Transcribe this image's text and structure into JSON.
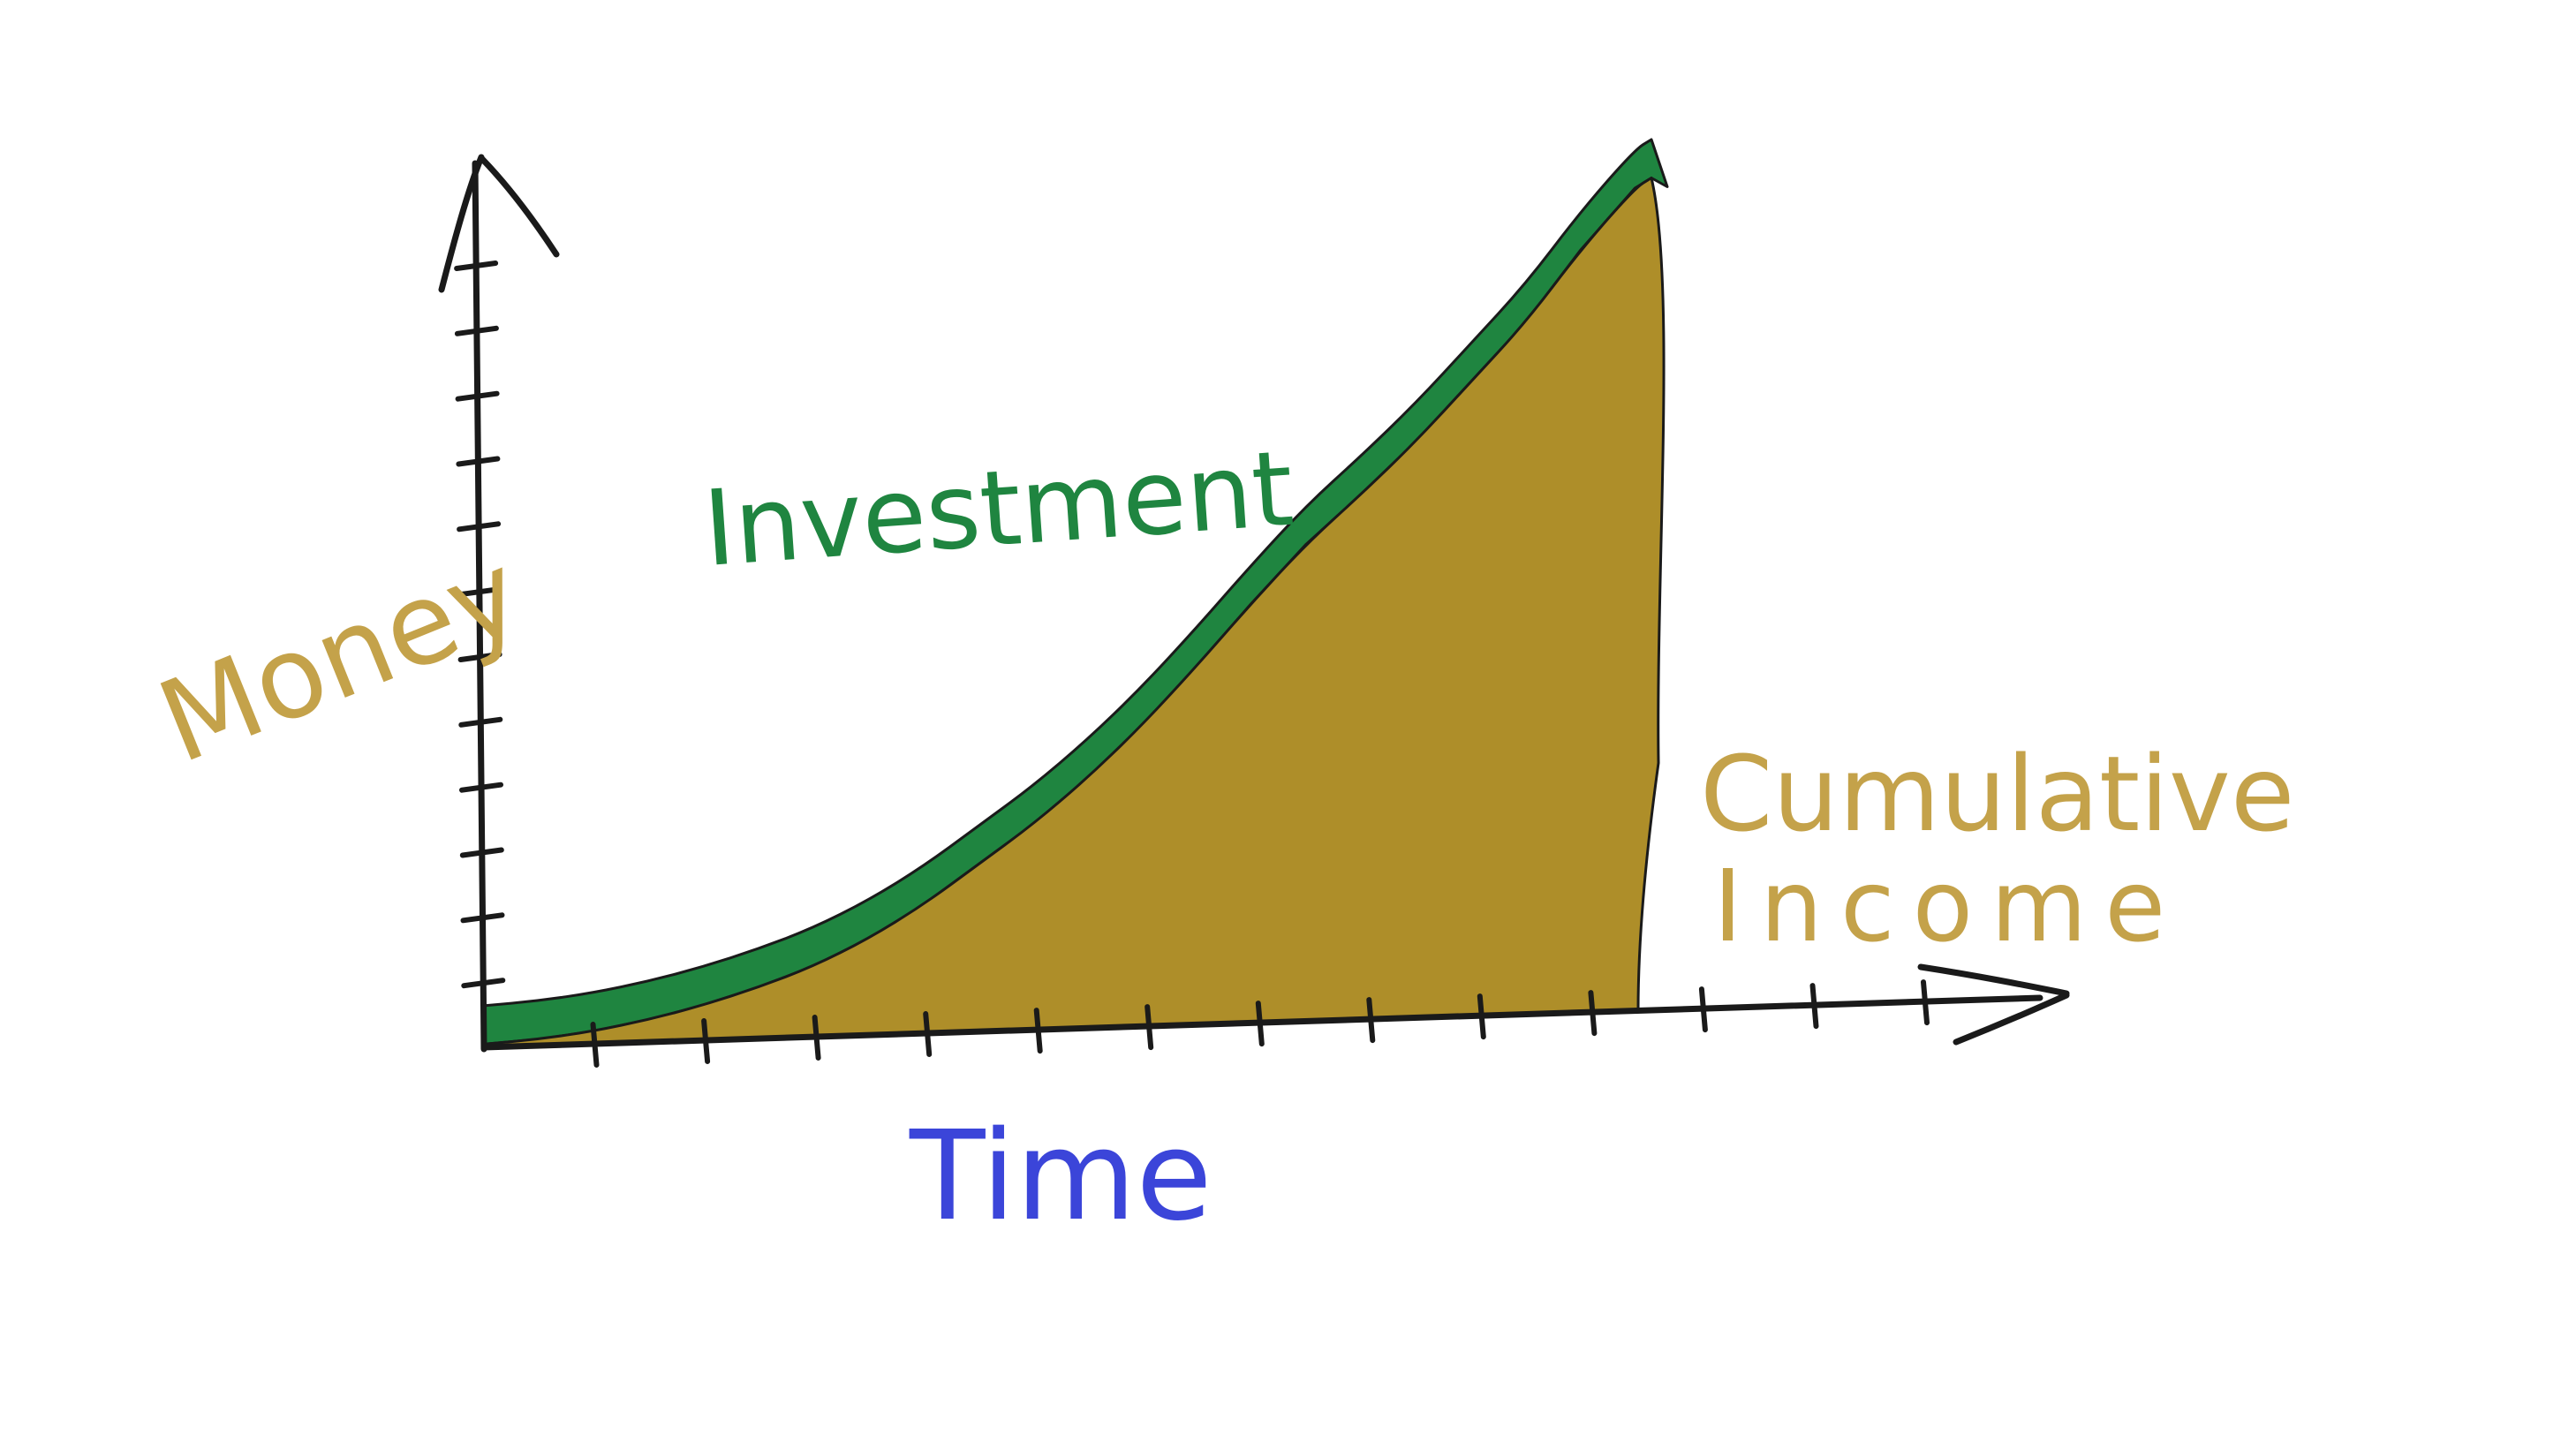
{
  "chart_data": {
    "type": "area",
    "title": "",
    "xlabel": "Time",
    "ylabel": "Money",
    "xlim": [
      0,
      13
    ],
    "ylim": [
      0,
      13
    ],
    "grid": false,
    "x": [
      0,
      0.5,
      1,
      1.5,
      2,
      2.5,
      3,
      3.5,
      4,
      4.5,
      5,
      5.5,
      6,
      6.5,
      7,
      7.5,
      8,
      8.5,
      9,
      9.5,
      10,
      10.5,
      10.65
    ],
    "series": [
      {
        "name": "Cumulative Income",
        "values": [
          0.05,
          0.1,
          0.2,
          0.35,
          0.55,
          0.8,
          1.1,
          1.5,
          2.0,
          2.6,
          3.2,
          3.9,
          4.7,
          5.6,
          6.55,
          7.45,
          8.2,
          9.0,
          9.9,
          10.8,
          11.9,
          12.85,
          13.0
        ],
        "color": "#AE8E29"
      },
      {
        "name": "Investment",
        "values": [
          0.6,
          0.6,
          0.6,
          0.6,
          0.6,
          0.6,
          0.6,
          0.6,
          0.6,
          0.6,
          0.6,
          0.6,
          0.6,
          0.6,
          0.6,
          0.6,
          0.6,
          0.6,
          0.6,
          0.6,
          0.6,
          0.6,
          0.6
        ],
        "color": "#1F8540",
        "stacked_on": "Cumulative Income"
      }
    ],
    "labels": {
      "investment": "Investment",
      "cumulative_income_line1": "Cumulative",
      "cumulative_income_line2": "Income",
      "money": "Money",
      "time": "Time"
    },
    "colors": {
      "income": "#AE8E29",
      "investment": "#1F8540",
      "ylabel": "#C4A24A",
      "xlabel": "#3B45D9",
      "axis": "#1A1A1A"
    },
    "x_tick_count": 13,
    "y_tick_count": 12
  }
}
